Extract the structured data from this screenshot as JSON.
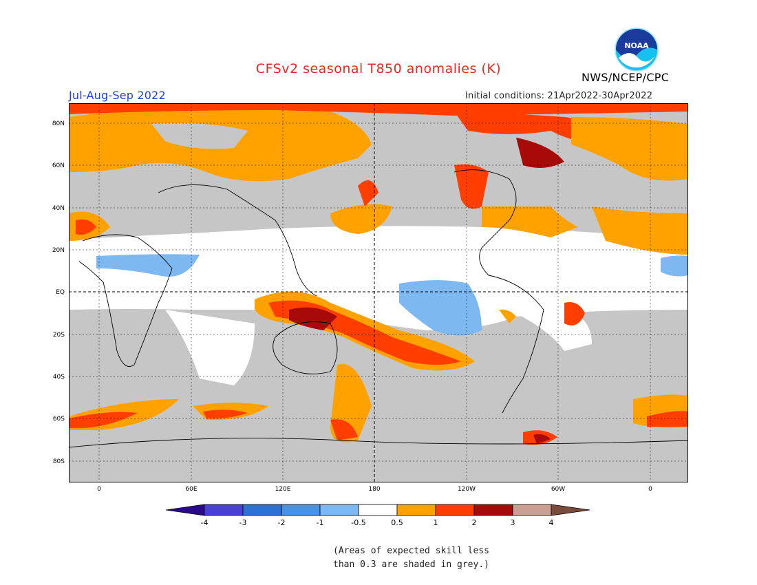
{
  "title": "CFSv2 seasonal T850 anomalies (K)",
  "agency": "NWS/NCEP/CPC",
  "logo_text": "NOAA",
  "season": "Jul-Aug-Sep 2022",
  "initial_conditions": "Initial conditions: 21Apr2022-30Apr2022",
  "footnote": {
    "line1": "(Areas of expected skill less",
    "line2": "than 0.3 are shaded in grey.)"
  },
  "lat_labels": [
    "80N",
    "60N",
    "40N",
    "20N",
    "EQ",
    "20S",
    "40S",
    "60S",
    "80S"
  ],
  "lon_labels": [
    "0",
    "60E",
    "120E",
    "180",
    "120W",
    "60W",
    "0"
  ],
  "colorbar": {
    "tick_labels": [
      "-4",
      "-3",
      "-2",
      "-1",
      "-0.5",
      "0.5",
      "1",
      "2",
      "3",
      "4"
    ],
    "colors": [
      "#2a0a8c",
      "#4a3fd6",
      "#2f6fd8",
      "#4a90e8",
      "#7db8f0",
      "#ffffff",
      "#ffa200",
      "#ff3e00",
      "#a80a0a",
      "#c9a091",
      "#7a4b3a"
    ]
  },
  "colors": {
    "grey_low_skill": "#c6c6c6",
    "title_red": "#e8281e",
    "season_blue": "#1c3ee6"
  }
}
